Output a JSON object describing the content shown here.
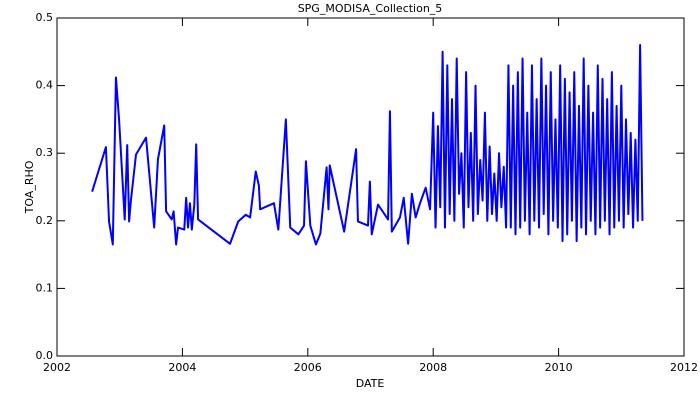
{
  "chart_data": {
    "type": "line",
    "title": "SPG_MODISA_Collection_5",
    "x_label": "DATE",
    "y_label": "TOA_RHO",
    "color": "#0000ff",
    "xlim": [
      2002,
      2012
    ],
    "xticks": [
      2002,
      2004,
      2006,
      2008,
      2010,
      2012
    ],
    "ylim": [
      0,
      0.5
    ],
    "yticks": [
      {
        "value": 0,
        "label": "0.0"
      },
      0.1,
      0.2,
      0.3,
      0.4,
      0.5
    ],
    "x": [
      2002.56,
      2002.78,
      2002.83,
      2002.89,
      2002.94,
      2002.99,
      2003.08,
      2003.12,
      2003.15,
      2003.18,
      2003.26,
      2003.42,
      2003.55,
      2003.61,
      2003.71,
      2003.74,
      2003.83,
      2003.86,
      2003.9,
      2003.93,
      2004.03,
      2004.06,
      2004.09,
      2004.12,
      2004.15,
      2004.19,
      2004.22,
      2004.25,
      2004.76,
      2004.89,
      2005.01,
      2005.08,
      2005.17,
      2005.22,
      2005.24,
      2005.46,
      2005.53,
      2005.65,
      2005.72,
      2005.85,
      2005.94,
      2005.97,
      2006.04,
      2006.13,
      2006.2,
      2006.3,
      2006.33,
      2006.35,
      2006.58,
      2006.77,
      2006.8,
      2006.96,
      2006.99,
      2007.02,
      2007.12,
      2007.28,
      2007.31,
      2007.34,
      2007.47,
      2007.53,
      2007.6,
      2007.66,
      2007.72,
      2007.79,
      2007.88,
      2007.95,
      2008,
      2008.0375,
      2008.075,
      2008.1125,
      2008.15,
      2008.1875,
      2008.225,
      2008.2625,
      2008.3,
      2008.3375,
      2008.375,
      2008.4125,
      2008.45,
      2008.4875,
      2008.525,
      2008.5625,
      2008.6,
      2008.6375,
      2008.675,
      2008.7125,
      2008.75,
      2008.7875,
      2008.825,
      2008.8625,
      2008.9,
      2008.9375,
      2008.975,
      2009.0125,
      2009.05,
      2009.0875,
      2009.125,
      2009.1625,
      2009.2,
      2009.2375,
      2009.275,
      2009.3125,
      2009.35,
      2009.3875,
      2009.425,
      2009.4625,
      2009.5,
      2009.5375,
      2009.575,
      2009.6125,
      2009.65,
      2009.6875,
      2009.725,
      2009.7625,
      2009.8,
      2009.8375,
      2009.875,
      2009.9125,
      2009.95,
      2009.9875,
      2010.025,
      2010.0625,
      2010.1,
      2010.1375,
      2010.175,
      2010.2125,
      2010.25,
      2010.2875,
      2010.325,
      2010.3625,
      2010.4,
      2010.4375,
      2010.475,
      2010.5125,
      2010.55,
      2010.5875,
      2010.625,
      2010.6625,
      2010.7,
      2010.7375,
      2010.775,
      2010.8125,
      2010.85,
      2010.8875,
      2010.925,
      2010.9625,
      2011,
      2011.0375,
      2011.075,
      2011.1125,
      2011.15,
      2011.1875,
      2011.225,
      2011.2625,
      2011.3,
      2011.3375
    ],
    "values": [
      0.243,
      0.309,
      0.199,
      0.165,
      0.412,
      0.35,
      0.202,
      0.312,
      0.199,
      0.231,
      0.298,
      0.323,
      0.19,
      0.291,
      0.341,
      0.214,
      0.202,
      0.214,
      0.165,
      0.19,
      0.187,
      0.234,
      0.19,
      0.226,
      0.187,
      0.224,
      0.313,
      0.202,
      0.166,
      0.199,
      0.209,
      0.205,
      0.273,
      0.252,
      0.217,
      0.226,
      0.187,
      0.35,
      0.19,
      0.18,
      0.193,
      0.288,
      0.193,
      0.165,
      0.181,
      0.279,
      0.217,
      0.282,
      0.184,
      0.306,
      0.199,
      0.193,
      0.258,
      0.18,
      0.224,
      0.202,
      0.362,
      0.184,
      0.205,
      0.234,
      0.166,
      0.24,
      0.205,
      0.226,
      0.249,
      0.217,
      0.36,
      0.19,
      0.34,
      0.22,
      0.45,
      0.19,
      0.43,
      0.21,
      0.38,
      0.2,
      0.44,
      0.24,
      0.3,
      0.19,
      0.42,
      0.22,
      0.33,
      0.2,
      0.4,
      0.21,
      0.29,
      0.23,
      0.36,
      0.2,
      0.31,
      0.21,
      0.27,
      0.2,
      0.3,
      0.22,
      0.28,
      0.19,
      0.43,
      0.19,
      0.4,
      0.18,
      0.42,
      0.19,
      0.44,
      0.2,
      0.36,
      0.18,
      0.43,
      0.2,
      0.38,
      0.19,
      0.44,
      0.21,
      0.4,
      0.18,
      0.42,
      0.2,
      0.35,
      0.19,
      0.43,
      0.17,
      0.41,
      0.18,
      0.39,
      0.2,
      0.42,
      0.17,
      0.37,
      0.19,
      0.44,
      0.18,
      0.4,
      0.2,
      0.36,
      0.18,
      0.43,
      0.19,
      0.41,
      0.2,
      0.38,
      0.18,
      0.42,
      0.19,
      0.37,
      0.2,
      0.4,
      0.19,
      0.35,
      0.21,
      0.33,
      0.19,
      0.32,
      0.2,
      0.46,
      0.2
    ]
  }
}
